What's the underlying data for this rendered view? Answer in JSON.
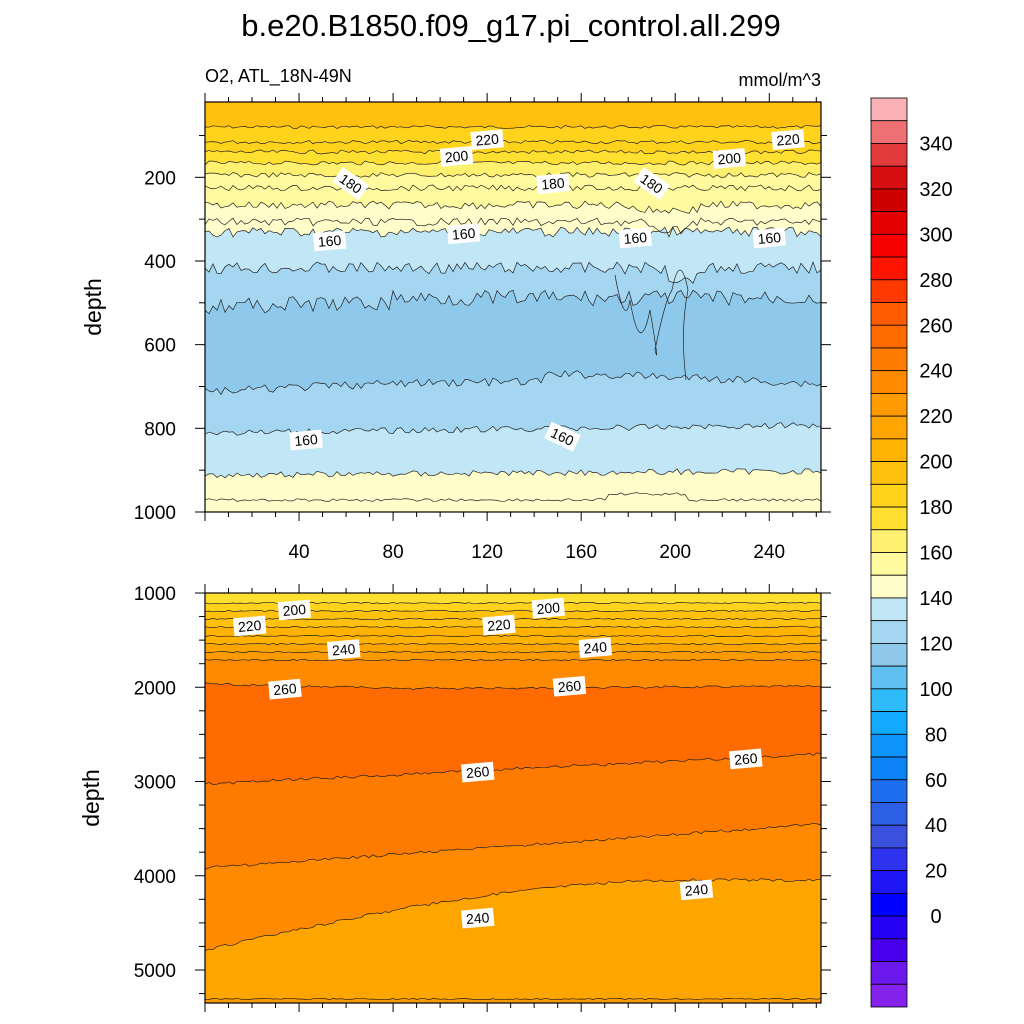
{
  "title": "b.e20.B1850.f09_g17.pi_control.all.299",
  "chart_data": [
    {
      "type": "heatmap",
      "subtitle_left": "O2, ATL_18N-49N",
      "subtitle_right": "mmol/m^3",
      "ylabel": "depth",
      "xlabel": "",
      "xlim": [
        0,
        262
      ],
      "ylim": [
        1000,
        20
      ],
      "x_ticks": [
        "40",
        "80",
        "120",
        "160",
        "200",
        "240"
      ],
      "y_ticks": [
        "200",
        "400",
        "600",
        "800",
        "1000"
      ],
      "contours": [
        {
          "value": 230,
          "depth": 70
        },
        {
          "value": 220,
          "depth": 100
        },
        {
          "value": 210,
          "depth": 125
        },
        {
          "value": 200,
          "depth": 150
        },
        {
          "value": 190,
          "depth": 175
        },
        {
          "value": 180,
          "depth": 205
        },
        {
          "value": 170,
          "depth": 260
        },
        {
          "value": 160,
          "depth": 330
        },
        {
          "value": 150,
          "depth": 440
        },
        {
          "value": 150,
          "depth": 680,
          "note": "lower bound of low-oxygen core"
        },
        {
          "value": 160,
          "depth": 815
        },
        {
          "value": 170,
          "depth": 910
        }
      ],
      "contour_labels": [
        {
          "text": "220",
          "x": 120,
          "y": 110
        },
        {
          "text": "220",
          "x": 248,
          "y": 110
        },
        {
          "text": "200",
          "x": 107,
          "y": 150
        },
        {
          "text": "200",
          "x": 223,
          "y": 155
        },
        {
          "text": "180",
          "x": 62,
          "y": 215
        },
        {
          "text": "180",
          "x": 148,
          "y": 215
        },
        {
          "text": "180",
          "x": 190,
          "y": 215
        },
        {
          "text": "160",
          "x": 53,
          "y": 352
        },
        {
          "text": "160",
          "x": 110,
          "y": 335
        },
        {
          "text": "160",
          "x": 183,
          "y": 345
        },
        {
          "text": "160",
          "x": 240,
          "y": 345
        },
        {
          "text": "160",
          "x": 43,
          "y": 828
        },
        {
          "text": "160",
          "x": 152,
          "y": 820
        }
      ]
    },
    {
      "type": "heatmap",
      "ylabel": "depth",
      "xlabel": "",
      "xlim": [
        0,
        262
      ],
      "ylim": [
        5350,
        1000
      ],
      "x_ticks": [],
      "y_ticks": [
        "1000",
        "2000",
        "3000",
        "4000",
        "5000"
      ],
      "contours": [
        {
          "value": 200,
          "depth": 1150
        },
        {
          "value": 220,
          "depth": 1350
        },
        {
          "value": 240,
          "depth": 1600
        },
        {
          "value": 250,
          "depth": 1750
        },
        {
          "value": 260,
          "depth": 1950
        },
        {
          "value": 260,
          "depth": 2900,
          "note": "lower bound of 260+ core"
        },
        {
          "value": 250,
          "depth": 3700
        },
        {
          "value": 240,
          "depth": 4500
        }
      ],
      "contour_labels": [
        {
          "text": "200",
          "x": 38,
          "y": 1180
        },
        {
          "text": "200",
          "x": 146,
          "y": 1160
        },
        {
          "text": "220",
          "x": 19,
          "y": 1350
        },
        {
          "text": "220",
          "x": 125,
          "y": 1340
        },
        {
          "text": "240",
          "x": 59,
          "y": 1600
        },
        {
          "text": "240",
          "x": 166,
          "y": 1580
        },
        {
          "text": "260",
          "x": 34,
          "y": 2020
        },
        {
          "text": "260",
          "x": 155,
          "y": 1990
        },
        {
          "text": "260",
          "x": 116,
          "y": 2900
        },
        {
          "text": "260",
          "x": 230,
          "y": 2760
        },
        {
          "text": "240",
          "x": 116,
          "y": 4450
        },
        {
          "text": "240",
          "x": 209,
          "y": 4150
        }
      ]
    }
  ],
  "colorbar": {
    "labels": [
      "340",
      "320",
      "300",
      "280",
      "260",
      "240",
      "220",
      "200",
      "180",
      "160",
      "140",
      "120",
      "100",
      "80",
      "60",
      "40",
      "20",
      "0"
    ],
    "colors": [
      "#f9b1b5",
      "#ef7072",
      "#e33b3c",
      "#d61010",
      "#cf0000",
      "#e30000",
      "#f60000",
      "#ff1400",
      "#ff3a00",
      "#ff5b00",
      "#ff6b00",
      "#ff7b00",
      "#ff8a00",
      "#ff9a00",
      "#ffa500",
      "#ffb300",
      "#ffc10e",
      "#ffd21b",
      "#ffe030",
      "#fff070",
      "#fffa9e",
      "#fffdca",
      "#c1e6f5",
      "#a4d6f1",
      "#8ec9ec",
      "#5fc1f2",
      "#2ebbf9",
      "#12aafc",
      "#0d95fb",
      "#0b82f6",
      "#1d6ff0",
      "#2d5fe6",
      "#3c50e0",
      "#2e34ee",
      "#1e16f4",
      "#0000ff",
      "#2600f4",
      "#4800ec",
      "#6b19ec",
      "#8421ea"
    ]
  }
}
